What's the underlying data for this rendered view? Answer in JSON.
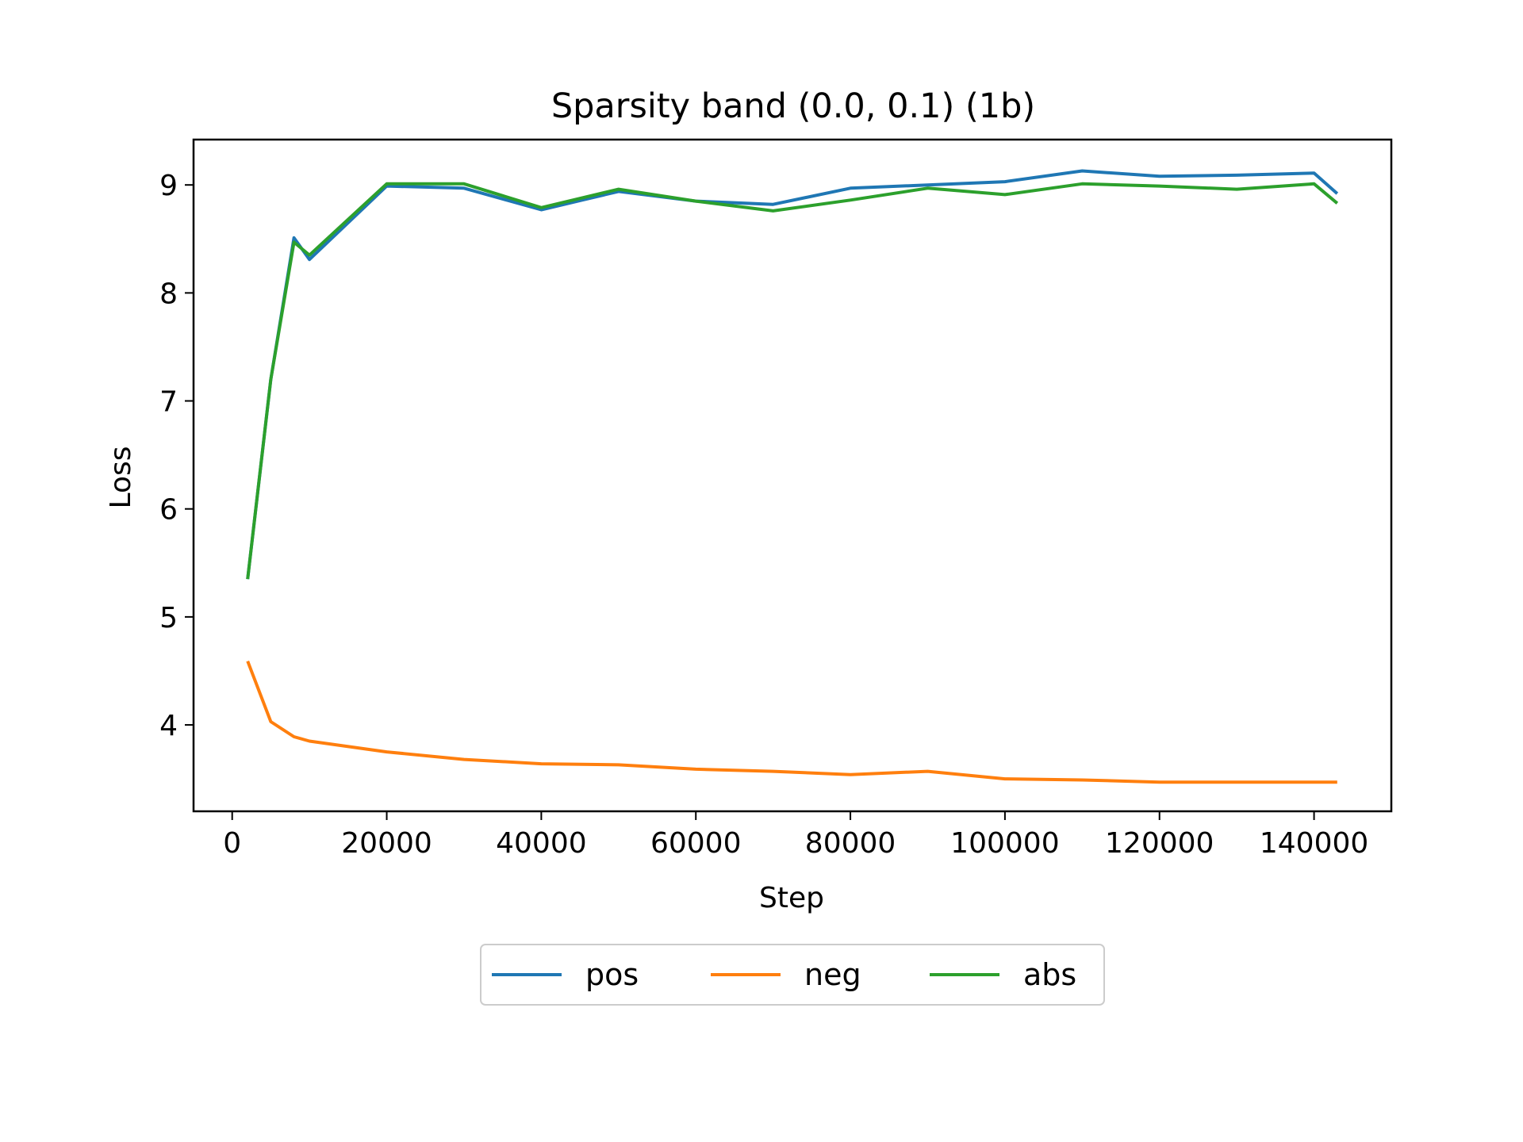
{
  "chart_data": {
    "type": "line",
    "title": "Sparsity band (0.0, 0.1) (1b)",
    "xlabel": "Step",
    "ylabel": "Loss",
    "xlim": [
      -5000,
      150000
    ],
    "ylim": [
      3.2,
      9.42
    ],
    "xticks": [
      0,
      20000,
      40000,
      60000,
      80000,
      100000,
      120000,
      140000
    ],
    "yticks": [
      4,
      5,
      6,
      7,
      8,
      9
    ],
    "grid": false,
    "legend": "bottom-center, outside, horizontal",
    "x": [
      2000,
      5000,
      8000,
      10000,
      20000,
      30000,
      40000,
      50000,
      60000,
      70000,
      80000,
      90000,
      100000,
      110000,
      120000,
      130000,
      140000,
      143000
    ],
    "series": [
      {
        "name": "pos",
        "color": "#1f77b4",
        "values": [
          5.35,
          7.2,
          8.51,
          8.31,
          8.99,
          8.97,
          8.77,
          8.94,
          8.85,
          8.82,
          8.97,
          9.0,
          9.03,
          9.13,
          9.08,
          9.09,
          9.11,
          8.92
        ]
      },
      {
        "name": "neg",
        "color": "#ff7f0e",
        "values": [
          4.59,
          4.03,
          3.89,
          3.85,
          3.75,
          3.68,
          3.64,
          3.63,
          3.59,
          3.57,
          3.54,
          3.57,
          3.5,
          3.49,
          3.47,
          3.47,
          3.47,
          3.47
        ]
      },
      {
        "name": "abs",
        "color": "#2ca02c",
        "values": [
          5.35,
          7.2,
          8.47,
          8.35,
          9.01,
          9.01,
          8.79,
          8.96,
          8.85,
          8.76,
          8.86,
          8.97,
          8.91,
          9.01,
          8.99,
          8.96,
          9.01,
          8.83
        ]
      }
    ]
  }
}
